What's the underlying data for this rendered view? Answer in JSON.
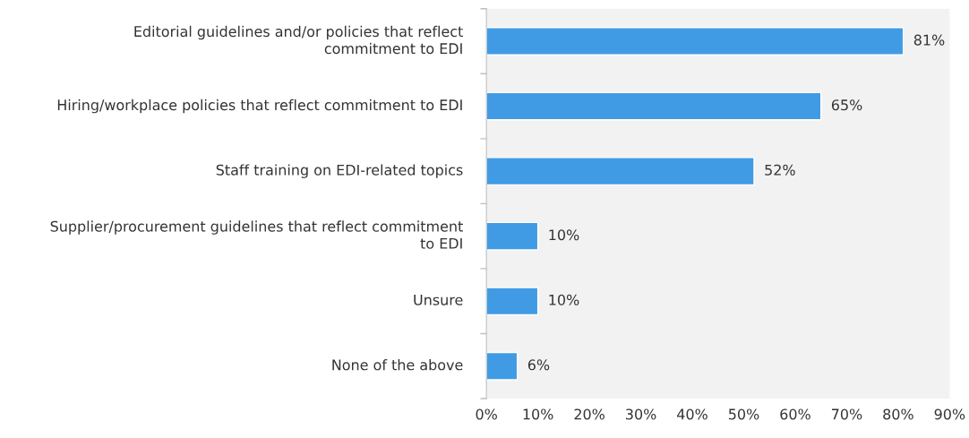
{
  "chart_data": {
    "type": "bar",
    "orientation": "horizontal",
    "categories": [
      "Editorial guidelines and/or policies that reflect commitment to EDI",
      "Hiring/workplace policies that reflect commitment to EDI",
      "Staff training on EDI-related topics",
      "Supplier/procurement guidelines that reflect commitment to EDI",
      "Unsure",
      "None of the above"
    ],
    "values": [
      81,
      65,
      52,
      10,
      10,
      6
    ],
    "value_labels": [
      "81%",
      "65%",
      "52%",
      "10%",
      "10%",
      "6%"
    ],
    "color": "#419be4",
    "xlim": [
      0,
      90
    ],
    "xticks": [
      {
        "value": 0,
        "label": "0%"
      },
      {
        "value": 10,
        "label": "10%"
      },
      {
        "value": 20,
        "label": "20%"
      },
      {
        "value": 30,
        "label": "30%"
      },
      {
        "value": 40,
        "label": "40%"
      },
      {
        "value": 50,
        "label": "50%"
      },
      {
        "value": 60,
        "label": "60%"
      },
      {
        "value": 70,
        "label": "70%"
      },
      {
        "value": 80,
        "label": "80%"
      },
      {
        "value": 90,
        "label": "90%"
      }
    ],
    "grid": false,
    "legend": false
  }
}
